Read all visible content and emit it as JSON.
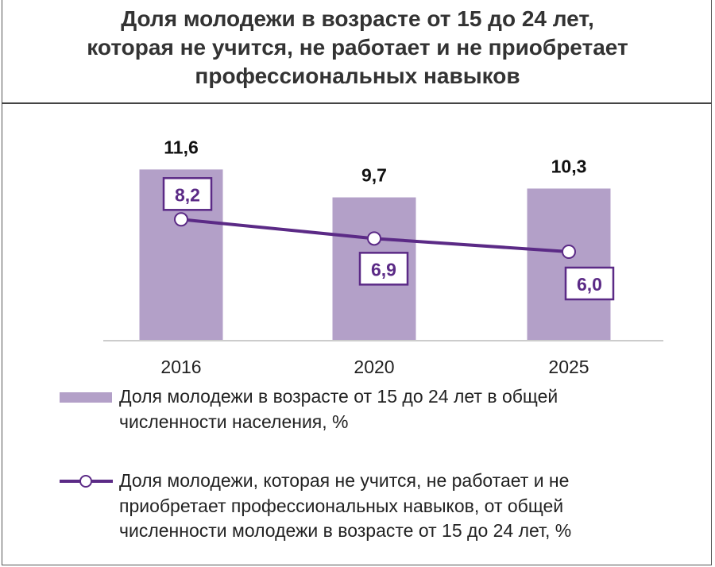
{
  "chart_data": {
    "type": "bar",
    "title_lines": [
      "Доля молодежи в возрасте от 15 до 24 лет,",
      "которая не учится, не работает и не приобретает",
      "профессиональных навыков"
    ],
    "categories": [
      "2016",
      "2020",
      "2025"
    ],
    "series": [
      {
        "name": "Доля молодежи в возрасте от 15 до 24 лет в общей численности населения, %",
        "type": "bar",
        "values": [
          11.6,
          9.7,
          10.3
        ],
        "labels": [
          "11,6",
          "9,7",
          "10,3"
        ],
        "color": "#b3a0c8"
      },
      {
        "name": "Доля молодежи, которая не учится, не работает и не приобретает профессиональных навыков, от общей численности молодежи в возрасте от 15 до 24 лет, %",
        "type": "line",
        "values": [
          8.2,
          6.9,
          6.0
        ],
        "labels": [
          "8,2",
          "6,9",
          "6,0"
        ],
        "color": "#5b2a86"
      }
    ],
    "legend_lines": [
      [
        "Доля молодежи в возрасте от 15 до 24 лет в общей",
        "численности населения, %"
      ],
      [
        "Доля молодежи, которая не учится, не работает и не",
        "приобретает профессиональных навыков, от общей",
        "численности молодежи в возрасте от 15 до 24 лет, %"
      ]
    ],
    "xlabel": "",
    "ylabel": "",
    "ylim": [
      0,
      12.5
    ],
    "grid": false,
    "legend_position": "bottom"
  }
}
